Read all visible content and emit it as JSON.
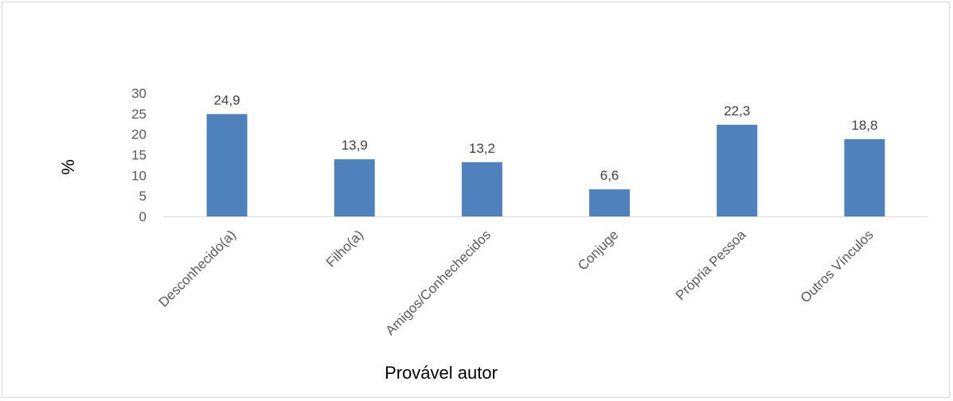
{
  "chart_data": {
    "type": "bar",
    "categories": [
      "Desconhecido(a)",
      "Filho(a)",
      "Amigos/Conhechecidos",
      "Conjuge",
      "Própria Pessoa",
      "Outros Vínculos"
    ],
    "values": [
      24.9,
      13.9,
      13.2,
      6.6,
      22.3,
      18.8
    ],
    "data_labels": [
      "24,9",
      "13,9",
      "13,2",
      "6,6",
      "22,3",
      "18,8"
    ],
    "title": "",
    "xlabel": "Provável autor",
    "ylabel": "%",
    "ylim": [
      0,
      30
    ],
    "yticks": [
      0,
      5,
      10,
      15,
      20,
      25,
      30
    ],
    "bar_color": "#4f81bd",
    "grid": false,
    "legend": "none"
  }
}
